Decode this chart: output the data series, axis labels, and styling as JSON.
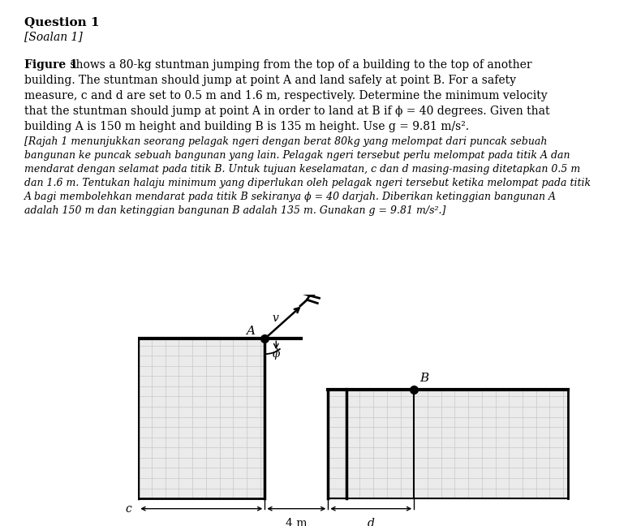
{
  "title_line1": "Question 1",
  "title_line2": "[Soalan 1]",
  "en_para": "Figure 1 shows a 80-kg stuntman jumping from the top of a building to the top of another building. The stuntman should jump at point A and land safely at point B. For a safety measure, c and d are set to 0.5 m and 1.6 m, respectively. Determine the minimum velocity that the stuntman should jump at point A in order to land at B if ϕ = 40 degrees. Given that building A is 150 m height and building B is 135 m height. Use g = 9.81 m/s².",
  "malay_para": "[Rajah 1 menunjukkan seorang pelagak ngeri dengan berat 80kg yang melompat dari puncak sebuah bangunan ke puncak sebuah bangunan yang lain. Pelagak ngeri tersebut perlu melompat pada titik A dan mendarat dengan selamat pada titik B. Untuk tujuan keselamatan, c dan d masing-masing ditetapkan 0.5 m dan 1.6 m. Tentukan halaju minimum yang diperlukan oleh pelagak ngeri tersebut ketika melompat pada titik A bagi membolehkan mendarat pada titik B sekiranya ϕ = 40 darjah. Diberikan ketinggian bangunan A adalah 150 m dan ketinggian bangunan B adalah 135 m. Gunakan g = 9.81 m/s².]",
  "bg_color": "#ffffff",
  "grid_color": "#c8c8c8",
  "building_fill": "#ebebeb",
  "label_A": "A",
  "label_B": "B",
  "label_c": "c",
  "label_4m": "4 m",
  "label_d": "d",
  "label_v": "v",
  "label_phi": "ϕ",
  "text_fontsize": 10,
  "title_fontsize": 11,
  "diagram_fontsize": 11
}
